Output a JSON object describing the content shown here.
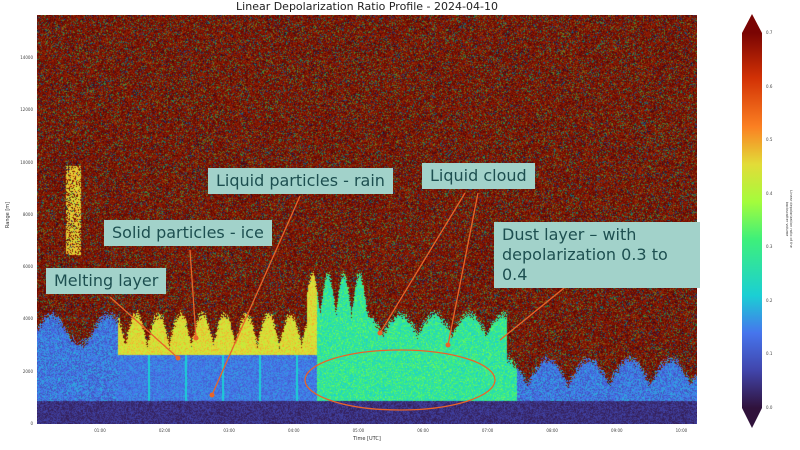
{
  "chart_data": {
    "type": "heatmap",
    "title": "Linear Depolarization Ratio Profile - 2024-04-10",
    "xlabel": "Time [UTC]",
    "ylabel": "Range [m]",
    "x_ticks": [
      "01:00",
      "02:00",
      "03:00",
      "04:00",
      "05:00",
      "06:00",
      "07:00",
      "08:00",
      "09:00",
      "10:00"
    ],
    "y_ticks": [
      "0",
      "2000",
      "4000",
      "6000",
      "8000",
      "10000",
      "12000",
      "14000"
    ],
    "ylim": [
      0,
      15500
    ],
    "colorbar": {
      "label": "Linear depolarization ratio of the backscatter volume",
      "ticks": [
        "0.0",
        "0.1",
        "0.2",
        "0.3",
        "0.4",
        "0.5",
        "0.6",
        "0.7"
      ],
      "range": [
        0.0,
        0.7
      ],
      "colormap": "turbo",
      "extend": "both"
    },
    "annotations": [
      {
        "text": "Liquid particles - rain"
      },
      {
        "text": "Liquid cloud"
      },
      {
        "text": "Solid particles - ice"
      },
      {
        "text": "Melting layer"
      },
      {
        "text": "Dust layer – with depolarization 0.3 to 0.4"
      }
    ],
    "annotation_color": "#a2d2ca",
    "arrow_color": "#e8642a",
    "grid": false
  }
}
